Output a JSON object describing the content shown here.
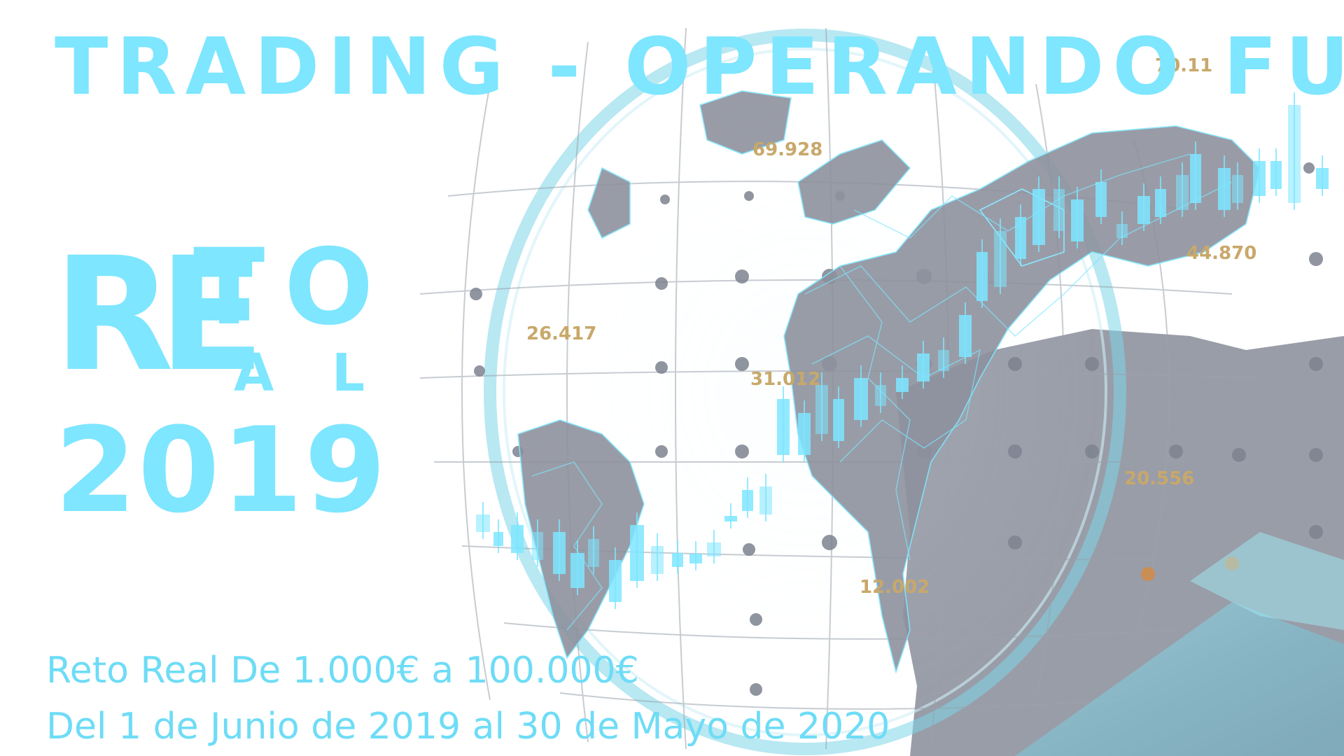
{
  "banner": {
    "title": "TRADING - OPERANDO FUTUROS",
    "reto_letters": {
      "r": "R",
      "e": "E",
      "t": "T",
      "o": "O",
      "a": "A",
      "l": "L"
    },
    "year": "2019",
    "subtitle_line1": "Reto Real De 1.000€ a 100.000€",
    "subtitle_line2": "Del 1 de Junio de 2019 al 30 de Mayo de 2020"
  },
  "background": {
    "price_labels": [
      "70.11",
      "69.928",
      "26.417",
      "31.012",
      "44.870",
      "20.556",
      "12.002"
    ],
    "colors": {
      "accent": "#7ee6ff",
      "earth": "#8e929e",
      "price": "#c8a86a",
      "candle": "#7ee6ff"
    }
  }
}
